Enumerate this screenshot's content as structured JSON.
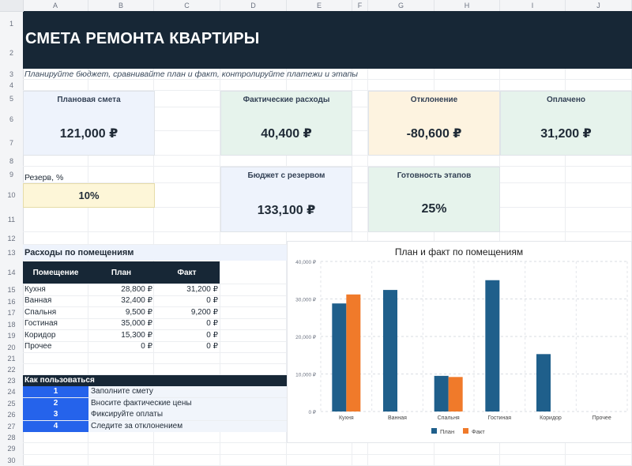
{
  "sheet": {
    "columns": [
      "A",
      "B",
      "C",
      "D",
      "E",
      "F",
      "G",
      "H",
      "I",
      "J"
    ],
    "rows": [
      "1",
      "2",
      "3",
      "4",
      "5",
      "6",
      "7",
      "8",
      "9",
      "10",
      "11",
      "12",
      "13",
      "14",
      "15",
      "16",
      "17",
      "18",
      "19",
      "20",
      "21",
      "22",
      "23",
      "24",
      "25",
      "26",
      "27",
      "28",
      "29",
      "30"
    ]
  },
  "title": "СМЕТА РЕМОНТА КВАРТИРЫ",
  "subtitle": "Планируйте бюджет, сравнивайте план и факт, контролируйте платежи и этапы",
  "cards": {
    "planned": {
      "label": "Плановая смета",
      "value": "121,000 ₽",
      "bg": "#eef3fc"
    },
    "actual": {
      "label": "Фактические расходы",
      "value": "40,400 ₽",
      "bg": "#e6f3ec"
    },
    "deviation": {
      "label": "Отклонение",
      "value": "-80,600 ₽",
      "bg": "#fdf3e0"
    },
    "paid": {
      "label": "Оплачено",
      "value": "31,200 ₽",
      "bg": "#e6f3ec"
    },
    "budget_reserve": {
      "label": "Бюджет с резервом",
      "value": "133,100 ₽",
      "bg": "#eef3fc"
    },
    "readiness": {
      "label": "Готовность этапов",
      "value": "25%",
      "bg": "#e6f3ec"
    }
  },
  "reserve": {
    "label": "Резерв, %",
    "value": "10%",
    "bg": "#fdf6d8"
  },
  "rooms_section": {
    "title": "Расходы по помещениям",
    "headers": [
      "Помещение",
      "План",
      "Факт"
    ],
    "rows": [
      {
        "room": "Кухня",
        "plan": "28,800 ₽",
        "fact": "31,200 ₽"
      },
      {
        "room": "Ванная",
        "plan": "32,400 ₽",
        "fact": "0 ₽"
      },
      {
        "room": "Спальня",
        "plan": "9,500 ₽",
        "fact": "9,200 ₽"
      },
      {
        "room": "Гостиная",
        "plan": "35,000 ₽",
        "fact": "0 ₽"
      },
      {
        "room": "Коридор",
        "plan": "15,300 ₽",
        "fact": "0 ₽"
      },
      {
        "room": "Прочее",
        "plan": "0 ₽",
        "fact": "0 ₽"
      }
    ]
  },
  "howto": {
    "title": "Как пользоваться",
    "steps": [
      {
        "n": "1",
        "text": "Заполните смету"
      },
      {
        "n": "2",
        "text": "Вносите фактические цены"
      },
      {
        "n": "3",
        "text": "Фиксируйте оплаты"
      },
      {
        "n": "4",
        "text": "Следите за отклонением"
      }
    ]
  },
  "colors": {
    "plan": "#1f5f8b",
    "fact": "#f07a2a",
    "header": "#172736",
    "step": "#2563eb"
  },
  "chart_data": {
    "type": "bar",
    "title": "План и факт по помещениям",
    "categories": [
      "Кухня",
      "Ванная",
      "Спальня",
      "Гостиная",
      "Коридор",
      "Прочее"
    ],
    "series": [
      {
        "name": "План",
        "values": [
          28800,
          32400,
          9500,
          35000,
          15300,
          0
        ]
      },
      {
        "name": "Факт",
        "values": [
          31200,
          0,
          9200,
          0,
          0,
          0
        ]
      }
    ],
    "ylim": [
      0,
      40000
    ],
    "yticks": [
      "0 ₽",
      "10,000 ₽",
      "20,000 ₽",
      "30,000 ₽",
      "40,000 ₽"
    ],
    "grid": true,
    "legend": "bottom"
  }
}
